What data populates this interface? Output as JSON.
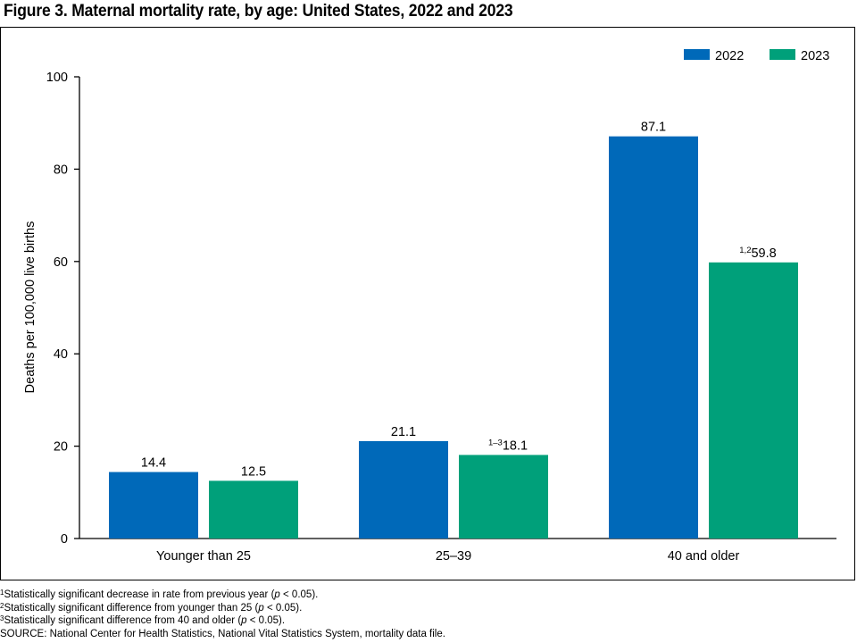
{
  "figure": {
    "title": "Figure 3. Maternal mortality rate, by age: United States, 2022 and 2023"
  },
  "chart_data": {
    "type": "bar",
    "categories": [
      "Younger than 25",
      "25–39",
      "40 and older"
    ],
    "series": [
      {
        "name": "2022",
        "color": "#0069b9",
        "values": [
          14.4,
          21.1,
          87.1
        ],
        "label_notes": [
          "",
          "",
          ""
        ]
      },
      {
        "name": "2023",
        "color": "#00a07a",
        "values": [
          12.5,
          18.1,
          59.8
        ],
        "label_notes": [
          "",
          "1–3",
          "1,2"
        ]
      }
    ],
    "value_labels": [
      [
        "14.4",
        "21.1",
        "87.1"
      ],
      [
        "12.5",
        "18.1",
        "59.8"
      ]
    ],
    "ylabel": "Deaths per 100,000 live births",
    "xlabel": "",
    "ylim": [
      0,
      100
    ],
    "yticks": [
      0,
      20,
      40,
      60,
      80,
      100
    ],
    "legend": {
      "position": "top-right",
      "entries": [
        "2022",
        "2023"
      ]
    },
    "grid": false
  },
  "footnotes": [
    {
      "mark": "1",
      "pre": "Statistically significant decrease in rate from previous year (",
      "ital": "p",
      "post": " < 0.05)."
    },
    {
      "mark": "2",
      "pre": "Statistically significant difference from younger than 25 (",
      "ital": "p",
      "post": " < 0.05)."
    },
    {
      "mark": "3",
      "pre": "Statistically significant difference from 40 and older (",
      "ital": "p",
      "post": " < 0.05)."
    }
  ],
  "source": "SOURCE: National Center for Health Statistics, National Vital Statistics System, mortality data file."
}
